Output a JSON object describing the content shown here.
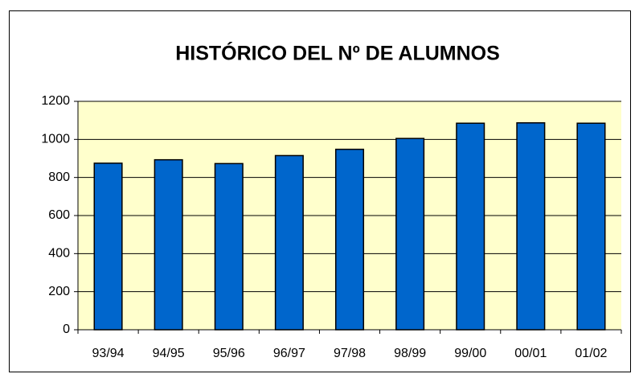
{
  "chart_data": {
    "type": "bar",
    "title": "HISTÓRICO DEL Nº DE ALUMNOS",
    "categories": [
      "93/94",
      "94/95",
      "95/96",
      "96/97",
      "97/98",
      "98/99",
      "99/00",
      "00/01",
      "01/02"
    ],
    "values": [
      875,
      893,
      873,
      915,
      948,
      1005,
      1085,
      1087,
      1085
    ],
    "color": "#0066cc",
    "ylim": [
      0,
      1200
    ],
    "yticks": [
      0,
      200,
      400,
      600,
      800,
      1000,
      1200
    ],
    "grid": true
  }
}
